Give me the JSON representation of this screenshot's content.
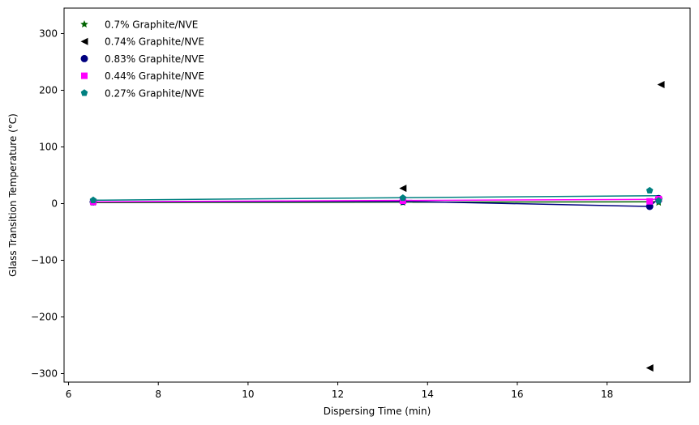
{
  "chart_data": {
    "type": "scatter",
    "title": "",
    "xlabel": "Dispersing Time (min)",
    "ylabel": "Glass Transition Temperature (°C)",
    "xlim": [
      5.9,
      19.85
    ],
    "ylim": [
      -315,
      345
    ],
    "xticks": [
      6,
      8,
      10,
      12,
      14,
      16,
      18
    ],
    "yticks": [
      -300,
      -200,
      -100,
      0,
      100,
      200,
      300
    ],
    "xtick_labels": [
      "6",
      "8",
      "10",
      "12",
      "14",
      "16",
      "18"
    ],
    "ytick_labels": [
      "−300",
      "−200",
      "−100",
      "0",
      "100",
      "200",
      "300"
    ],
    "grid": false,
    "legend_position": "top-left",
    "series": [
      {
        "name": "0.7%  Graphite/NVE",
        "marker": "star",
        "color": "#006400",
        "line_color": "#006400",
        "points": [
          [
            6.55,
            2
          ],
          [
            13.45,
            2
          ],
          [
            19.15,
            2
          ]
        ],
        "fit": [
          [
            6.55,
            1.8
          ],
          [
            19.15,
            3.2
          ]
        ]
      },
      {
        "name": "0.74%  Graphite/NVE",
        "marker": "triangle-left",
        "color": "#000000",
        "line_color": null,
        "points": [
          [
            13.45,
            27
          ],
          [
            18.95,
            -290
          ],
          [
            19.2,
            210
          ]
        ],
        "fit": []
      },
      {
        "name": "0.83%  Graphite/NVE",
        "marker": "circle",
        "color": "#00007f",
        "line_color": "#00007f",
        "points": [
          [
            6.55,
            3
          ],
          [
            13.45,
            4
          ],
          [
            18.95,
            -5
          ],
          [
            19.15,
            9
          ]
        ],
        "fit": [
          [
            6.55,
            3
          ],
          [
            13.45,
            4
          ],
          [
            18.95,
            -5
          ],
          [
            19.15,
            9
          ]
        ]
      },
      {
        "name": "0.44%  Graphite/NVE",
        "marker": "square",
        "color": "#ff00ff",
        "line_color": "#ff00ff",
        "points": [
          [
            6.55,
            3
          ],
          [
            13.45,
            5
          ],
          [
            18.95,
            4
          ],
          [
            19.15,
            8
          ]
        ],
        "fit": [
          [
            6.55,
            3.2
          ],
          [
            19.15,
            7.5
          ]
        ]
      },
      {
        "name": "0.27%  Graphite/NVE",
        "marker": "pentagon",
        "color": "#008080",
        "line_color": "#008080",
        "points": [
          [
            6.55,
            6
          ],
          [
            13.45,
            10
          ],
          [
            18.95,
            23
          ],
          [
            19.15,
            5
          ]
        ],
        "fit": [
          [
            6.55,
            6
          ],
          [
            19.15,
            14
          ]
        ]
      }
    ]
  }
}
